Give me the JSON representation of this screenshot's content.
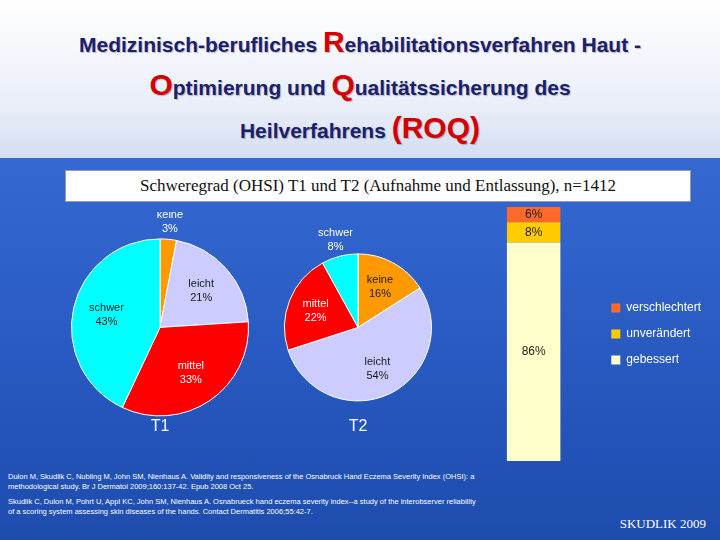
{
  "header": {
    "title_lines": [
      [
        {
          "text": "Medizinisch-berufliches "
        },
        {
          "text": "R",
          "emphasis": true
        },
        {
          "text": "ehabilitationsverfahren Haut -"
        }
      ],
      [
        {
          "text": "O",
          "emphasis": true
        },
        {
          "text": "ptimierung und "
        },
        {
          "text": "Q",
          "emphasis": true
        },
        {
          "text": "ualitätssicherung des"
        }
      ],
      [
        {
          "text": "Heilverfahrens "
        },
        {
          "text": "(ROQ)",
          "emphasis": true
        }
      ]
    ]
  },
  "subtitle": "Schweregrad (OHSI) T1 und T2 (Aufnahme und Entlassung), n=1412",
  "chart_data": [
    {
      "type": "pie",
      "title": "T1",
      "categories": [
        "keine",
        "leicht",
        "mittel",
        "schwer"
      ],
      "values": [
        3,
        21,
        33,
        43
      ],
      "value_labels": [
        "3%",
        "21%",
        "33%",
        "43%"
      ],
      "colors": [
        "#ff9900",
        "#ccccff",
        "#ff0000",
        "#00ffff"
      ],
      "data_labels": true
    },
    {
      "type": "pie",
      "title": "T2",
      "categories": [
        "keine",
        "leicht",
        "mittel",
        "schwer"
      ],
      "values": [
        16,
        54,
        22,
        8
      ],
      "value_labels": [
        "16%",
        "54%",
        "22%",
        "8%"
      ],
      "colors": [
        "#ff9900",
        "#ccccff",
        "#ff0000",
        "#00ffff"
      ],
      "data_labels": true
    },
    {
      "type": "bar",
      "stacked": true,
      "categories": [
        null
      ],
      "ylim": [
        0,
        100
      ],
      "tick_labels": false,
      "grid": false,
      "legend": "right",
      "data_labels": true,
      "series": [
        {
          "name": "verschlechtert",
          "color": "#ff6a2a",
          "values": [
            6
          ],
          "value_labels": [
            "6%"
          ]
        },
        {
          "name": "unverändert",
          "color": "#ffcc00",
          "values": [
            8
          ],
          "value_labels": [
            "8%"
          ]
        },
        {
          "name": "gebessert",
          "color": "#ffffcc",
          "values": [
            86
          ],
          "value_labels": [
            "86%"
          ]
        }
      ]
    }
  ],
  "references": [
    "Dulon M, Skudlik C, Nubling M, John SM, Nienhaus A. Validity and responsiveness of the Osnabruck Hand Eczema Severity Index (OHSI): a methodological study. Br J Dermatol 2009;160:137-42. Epub 2008 Oct 25.",
    "Skudlik C, Dulon M, Pohrt U, Appl KC, John SM, Nienhaus A. Osnabrueck hand eczema severity index--a study of the interobserver reliability of a scoring system assessing skin diseases of the hands. Contact Dermatitis 2006;55:42-7."
  ],
  "footer": "SKUDLIK 2009"
}
